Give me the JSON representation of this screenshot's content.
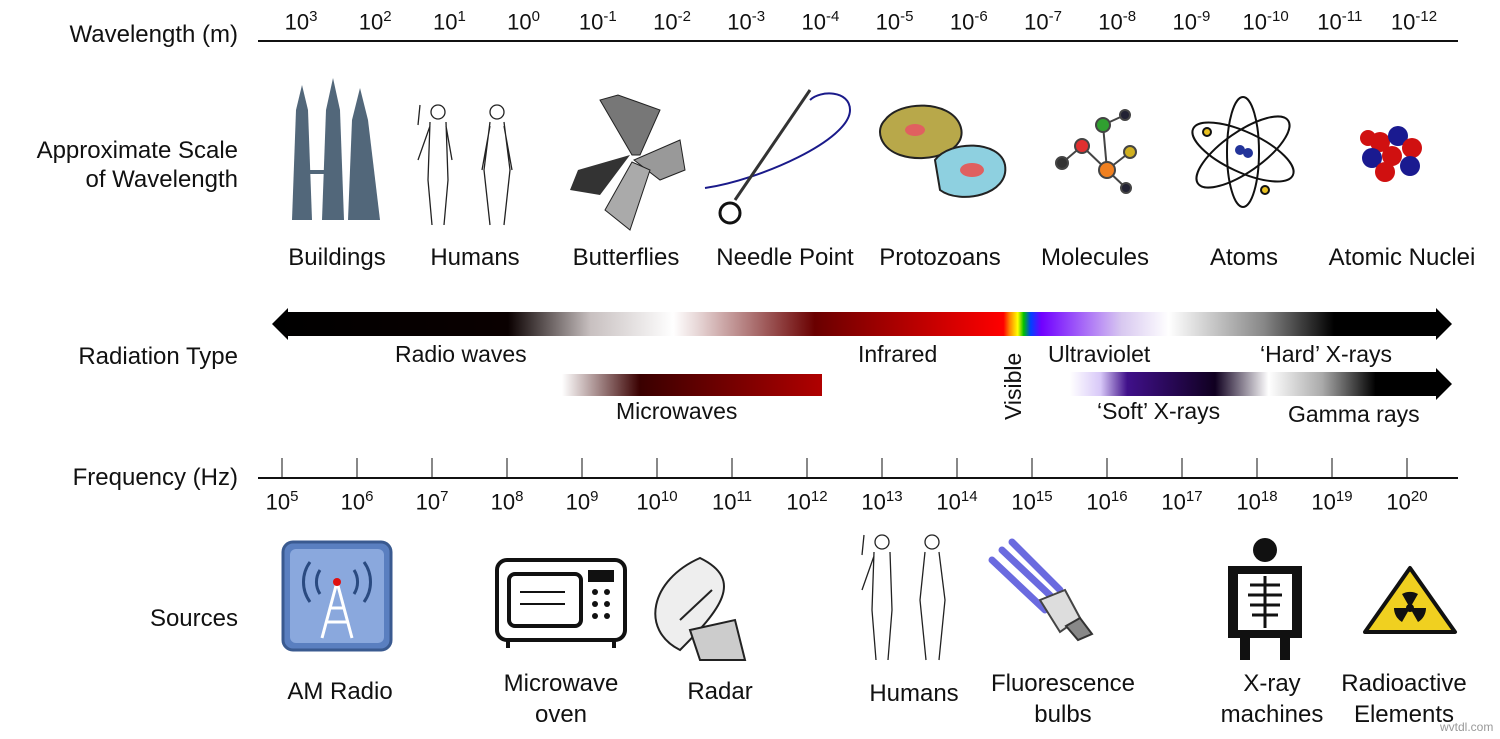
{
  "row_labels": {
    "wavelength": "Wavelength (m)",
    "scale": "Approximate Scale\nof Wavelength",
    "radiation": "Radiation Type",
    "frequency": "Frequency (Hz)",
    "sources": "Sources"
  },
  "wavelength_ticks": [
    {
      "base": "10",
      "exp": "3"
    },
    {
      "base": "10",
      "exp": "2"
    },
    {
      "base": "10",
      "exp": "1"
    },
    {
      "base": "10",
      "exp": "0"
    },
    {
      "base": "10",
      "exp": "-1"
    },
    {
      "base": "10",
      "exp": "-2"
    },
    {
      "base": "10",
      "exp": "-3"
    },
    {
      "base": "10",
      "exp": "-4"
    },
    {
      "base": "10",
      "exp": "-5"
    },
    {
      "base": "10",
      "exp": "-6"
    },
    {
      "base": "10",
      "exp": "-7"
    },
    {
      "base": "10",
      "exp": "-8"
    },
    {
      "base": "10",
      "exp": "-9"
    },
    {
      "base": "10",
      "exp": "-10"
    },
    {
      "base": "10",
      "exp": "-11"
    },
    {
      "base": "10",
      "exp": "-12"
    }
  ],
  "frequency_ticks": [
    {
      "base": "10",
      "exp": "5"
    },
    {
      "base": "10",
      "exp": "6"
    },
    {
      "base": "10",
      "exp": "7"
    },
    {
      "base": "10",
      "exp": "8"
    },
    {
      "base": "10",
      "exp": "9"
    },
    {
      "base": "10",
      "exp": "10"
    },
    {
      "base": "10",
      "exp": "11"
    },
    {
      "base": "10",
      "exp": "12"
    },
    {
      "base": "10",
      "exp": "13"
    },
    {
      "base": "10",
      "exp": "14"
    },
    {
      "base": "10",
      "exp": "15"
    },
    {
      "base": "10",
      "exp": "16"
    },
    {
      "base": "10",
      "exp": "17"
    },
    {
      "base": "10",
      "exp": "18"
    },
    {
      "base": "10",
      "exp": "19"
    },
    {
      "base": "10",
      "exp": "20"
    }
  ],
  "scale_items": [
    {
      "label": "Buildings",
      "icon": "buildings-icon"
    },
    {
      "label": "Humans",
      "icon": "humans-icon"
    },
    {
      "label": "Butterflies",
      "icon": "butterfly-icon"
    },
    {
      "label": "Needle Point",
      "icon": "needle-icon"
    },
    {
      "label": "Protozoans",
      "icon": "protozoa-icon"
    },
    {
      "label": "Molecules",
      "icon": "molecule-icon"
    },
    {
      "label": "Atoms",
      "icon": "atom-icon"
    },
    {
      "label": "Atomic Nuclei",
      "icon": "nucleus-icon"
    }
  ],
  "radiation_types": {
    "radio": "Radio waves",
    "infrared": "Infrared",
    "visible": "Visible",
    "ultraviolet": "Ultraviolet",
    "hard_xrays": "‘Hard’ X-rays",
    "microwaves": "Microwaves",
    "soft_xrays": "‘Soft’ X-rays",
    "gamma": "Gamma rays"
  },
  "sources": [
    {
      "label": "AM Radio",
      "icon": "radio-tower-icon"
    },
    {
      "label": "Microwave\noven",
      "icon": "microwave-icon"
    },
    {
      "label": "Radar",
      "icon": "radar-dish-icon"
    },
    {
      "label": "Humans",
      "icon": "humans-icon"
    },
    {
      "label": "Fluorescence\nbulbs",
      "icon": "bulb-icon"
    },
    {
      "label": "X-ray\nmachines",
      "icon": "xray-machine-icon"
    },
    {
      "label": "Radioactive\nElements",
      "icon": "radiation-icon"
    }
  ],
  "watermark": "wvtdl.com"
}
